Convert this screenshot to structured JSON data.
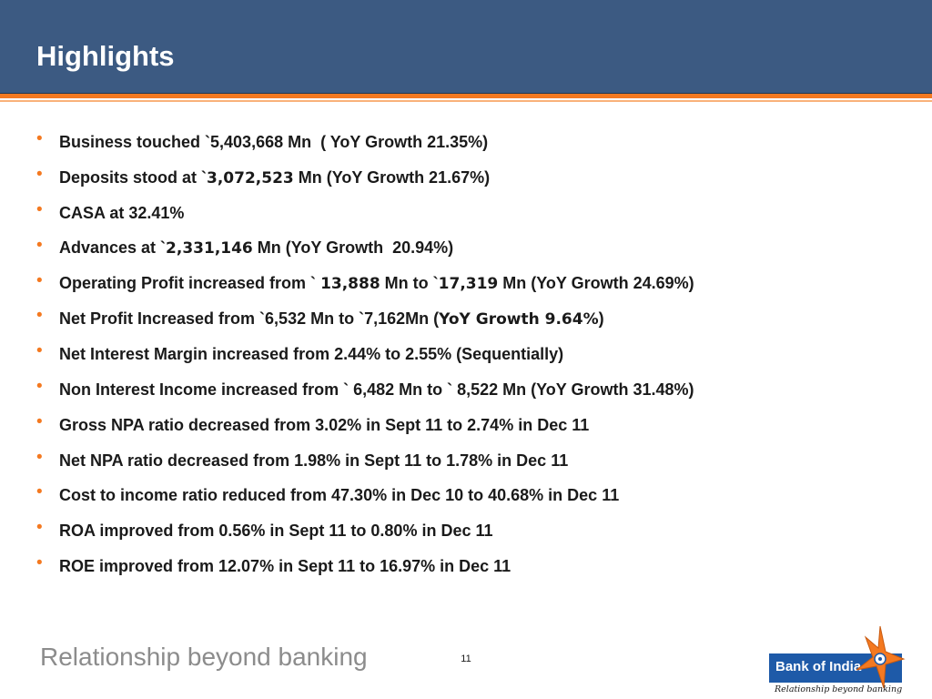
{
  "header": {
    "title": "Highlights"
  },
  "highlights": [
    {
      "parts": [
        "Business touched `5,403,668 Mn  ( YoY Growth 21.35%)"
      ]
    },
    {
      "parts": [
        "Deposits stood at `",
        "3,072,523",
        " Mn (YoY Growth 21.67%)"
      ]
    },
    {
      "parts": [
        "CASA at 32.41%"
      ]
    },
    {
      "parts": [
        "Advances at `",
        "2,331,146",
        " Mn (YoY Growth  20.94%)"
      ]
    },
    {
      "parts": [
        "Operating Profit increased from ` ",
        "13,888",
        " Mn to `",
        "17,319",
        " Mn (YoY Growth 24.69%)"
      ]
    },
    {
      "parts": [
        "Net Profit Increased from `6,532 Mn to `7,162Mn (",
        "YoY Growth 9.64%",
        ")"
      ]
    },
    {
      "parts": [
        "Net Interest Margin increased from 2.44% to 2.55% (Sequentially)"
      ]
    },
    {
      "parts": [
        "Non Interest Income increased from ` 6,482 Mn to ` 8,522 Mn (YoY Growth 31.48%)"
      ]
    },
    {
      "parts": [
        "Gross NPA ratio decreased from 3.02% in Sept 11 to 2.74% in Dec 11"
      ]
    },
    {
      "parts": [
        "Net NPA ratio decreased from 1.98% in Sept 11 to 1.78% in Dec 11"
      ]
    },
    {
      "parts": [
        "Cost to income ratio reduced from 47.30% in Dec 10 to 40.68% in Dec 11"
      ]
    },
    {
      "parts": [
        "ROA improved from 0.56% in Sept 11 to 0.80% in Dec 11"
      ]
    },
    {
      "parts": [
        "ROE improved from 12.07% in Sept 11 to 16.97% in Dec 11"
      ]
    }
  ],
  "footer": {
    "tagline": "Relationship beyond banking",
    "page_number": "11",
    "logo_name": "Bank of India",
    "logo_tagline": "Relationship beyond banking"
  },
  "colors": {
    "header_bg": "#3c5a82",
    "accent": "#f47920",
    "logo_blue": "#1e5aa8"
  },
  "icons": {
    "bullet": "bullet-dot-icon",
    "logo_mark": "star-logo-icon"
  }
}
